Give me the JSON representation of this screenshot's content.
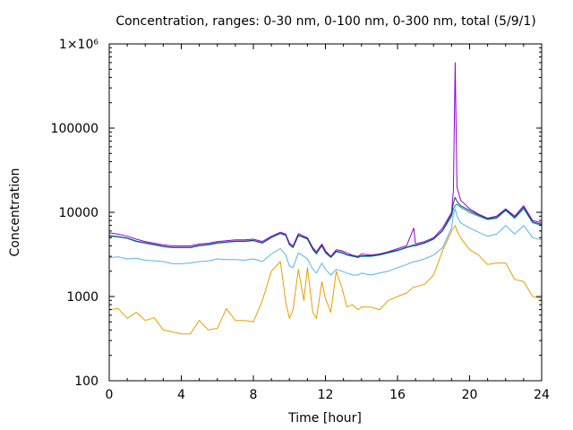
{
  "chart_data": {
    "type": "line",
    "title": "Concentration, ranges: 0-30 nm, 0-100 nm, 0-300 nm, total (5/9/1)",
    "xlabel": "Time [hour]",
    "ylabel": "Concentration",
    "xlim": [
      0,
      24
    ],
    "ylim": [
      100,
      1000000
    ],
    "yscale": "log",
    "grid": false,
    "legend": "none",
    "x_ticks": [
      0,
      4,
      8,
      12,
      16,
      20,
      24
    ],
    "x_tick_labels": [
      "0",
      "4",
      "8",
      "12",
      "16",
      "20",
      "24"
    ],
    "y_ticks": [
      100,
      1000,
      10000,
      100000,
      1000000
    ],
    "y_tick_labels": [
      "100",
      "1000",
      "10000",
      "100000",
      "1×10⁶"
    ],
    "x": [
      0,
      0.5,
      1,
      1.5,
      2,
      2.5,
      3,
      3.5,
      4,
      4.5,
      5,
      5.5,
      6,
      6.5,
      7,
      7.5,
      8,
      8.5,
      9,
      9.5,
      9.8,
      10,
      10.2,
      10.5,
      10.8,
      11,
      11.3,
      11.5,
      11.8,
      12,
      12.3,
      12.6,
      12.9,
      13.2,
      13.5,
      13.8,
      14,
      14.5,
      15,
      15.5,
      16,
      16.5,
      16.9,
      17,
      17.5,
      18,
      18.5,
      19,
      19.1,
      19.2,
      19.3,
      19.5,
      20,
      20.5,
      21,
      21.5,
      22,
      22.5,
      23,
      23.5,
      24
    ],
    "series": [
      {
        "color": "#9400d3",
        "values": [
          5700,
          5500,
          5200,
          4800,
          4500,
          4300,
          4100,
          4000,
          4000,
          4000,
          4200,
          4300,
          4500,
          4600,
          4700,
          4700,
          4800,
          4500,
          5200,
          5800,
          5500,
          4300,
          4000,
          5600,
          5200,
          5000,
          3800,
          3400,
          4200,
          3500,
          3000,
          3600,
          3500,
          3300,
          3100,
          3000,
          3200,
          3100,
          3200,
          3400,
          3700,
          4000,
          6500,
          4200,
          4500,
          5000,
          6500,
          10000,
          18000,
          600000,
          20000,
          14000,
          11000,
          9500,
          8500,
          9000,
          11000,
          9000,
          12000,
          8000,
          7500
        ]
      },
      {
        "color": "#009e73",
        "values": [
          5200,
          5100,
          4900,
          4500,
          4300,
          4100,
          3900,
          3800,
          3800,
          3800,
          4000,
          4100,
          4300,
          4400,
          4500,
          4500,
          4600,
          4300,
          5000,
          5600,
          5300,
          4100,
          3800,
          5300,
          5000,
          4800,
          3600,
          3200,
          4000,
          3300,
          2900,
          3400,
          3300,
          3100,
          3000,
          2900,
          3000,
          3000,
          3100,
          3300,
          3500,
          3800,
          4000,
          4000,
          4300,
          4800,
          6000,
          9000,
          11000,
          12000,
          12500,
          11500,
          10000,
          9000,
          8200,
          8500,
          10500,
          8500,
          11000,
          7500,
          7000
        ]
      },
      {
        "color": "#1f3c8c",
        "values": [
          5300,
          5150,
          4950,
          4550,
          4350,
          4150,
          3950,
          3850,
          3850,
          3850,
          4050,
          4150,
          4350,
          4450,
          4550,
          4550,
          4650,
          4350,
          5050,
          5650,
          5350,
          4150,
          3850,
          5350,
          5050,
          4850,
          3650,
          3250,
          4050,
          3350,
          2950,
          3450,
          3350,
          3150,
          3050,
          2950,
          3050,
          3050,
          3150,
          3350,
          3550,
          3850,
          4100,
          4050,
          4350,
          4850,
          6100,
          9500,
          13000,
          15000,
          13500,
          12000,
          10500,
          9300,
          8400,
          8700,
          10800,
          8700,
          11500,
          7700,
          7200
        ]
      },
      {
        "color": "#56b4e9",
        "values": [
          2900,
          2950,
          2800,
          2850,
          2700,
          2650,
          2600,
          2450,
          2450,
          2500,
          2600,
          2650,
          2800,
          2750,
          2750,
          2700,
          2800,
          2600,
          3200,
          3700,
          3100,
          2300,
          2200,
          3300,
          3000,
          2800,
          2100,
          1900,
          2500,
          2100,
          1800,
          2100,
          2000,
          1900,
          1800,
          1800,
          1900,
          1800,
          1900,
          2000,
          2200,
          2400,
          2600,
          2600,
          2800,
          3100,
          3800,
          6500,
          9500,
          11000,
          9000,
          7500,
          6500,
          5800,
          5200,
          5500,
          7000,
          5500,
          7000,
          5000,
          4700
        ]
      },
      {
        "color": "#e69f00",
        "values": [
          700,
          720,
          550,
          650,
          520,
          560,
          400,
          380,
          360,
          360,
          520,
          400,
          420,
          720,
          520,
          520,
          500,
          900,
          2000,
          2600,
          850,
          550,
          700,
          2100,
          900,
          2200,
          650,
          550,
          1500,
          950,
          650,
          2000,
          1300,
          750,
          800,
          700,
          750,
          750,
          700,
          900,
          1000,
          1100,
          1300,
          1300,
          1400,
          1800,
          3500,
          6000,
          6500,
          7000,
          6000,
          5000,
          3600,
          3100,
          2400,
          2500,
          2500,
          1600,
          1500,
          1000,
          950
        ]
      }
    ]
  }
}
